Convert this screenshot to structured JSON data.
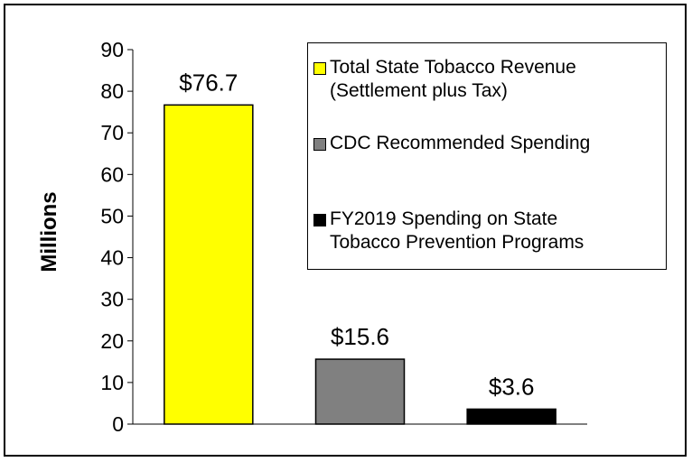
{
  "chart_data": {
    "type": "bar",
    "categories": [
      "Total State Tobacco Revenue\n(Settlement plus Tax)",
      "CDC Recommended Spending",
      "FY2019 Spending on State\nTobacco Prevention Programs"
    ],
    "values": [
      76.7,
      15.6,
      3.6
    ],
    "data_labels": [
      "$76.7",
      "$15.6",
      "$3.6"
    ],
    "colors": [
      "#ffff00",
      "#808080",
      "#000000"
    ],
    "title": "",
    "xlabel": "",
    "ylabel": "Millions",
    "ylim": [
      0,
      90
    ],
    "yticks": [
      0,
      10,
      20,
      30,
      40,
      50,
      60,
      70,
      80,
      90
    ],
    "grid": false,
    "legend_position": "top-right"
  }
}
